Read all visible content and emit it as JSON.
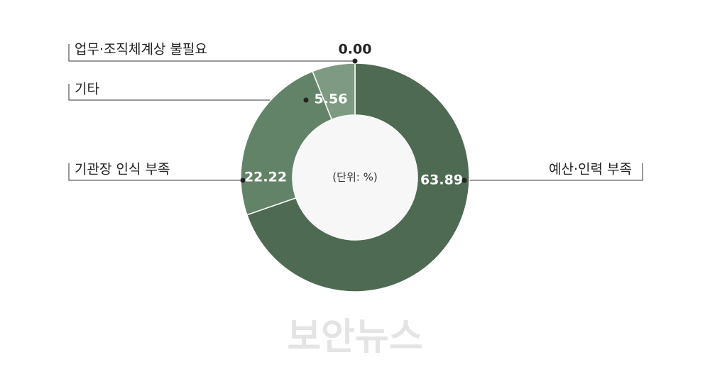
{
  "chart_data": {
    "type": "donut",
    "categories": [
      "예산·인력 부족",
      "기관장 인식 부족",
      "기타",
      "업무·조직체계상 불필요"
    ],
    "values": [
      63.89,
      22.22,
      5.56,
      0.0
    ],
    "value_labels": [
      "63.89",
      "22.22",
      "5.56",
      "0.00"
    ],
    "colors": [
      "#4f6a52",
      "#638368",
      "#7f9a83",
      "#7f9a83"
    ],
    "center_text": "(단위: %)"
  },
  "watermark": "보안뉴스"
}
